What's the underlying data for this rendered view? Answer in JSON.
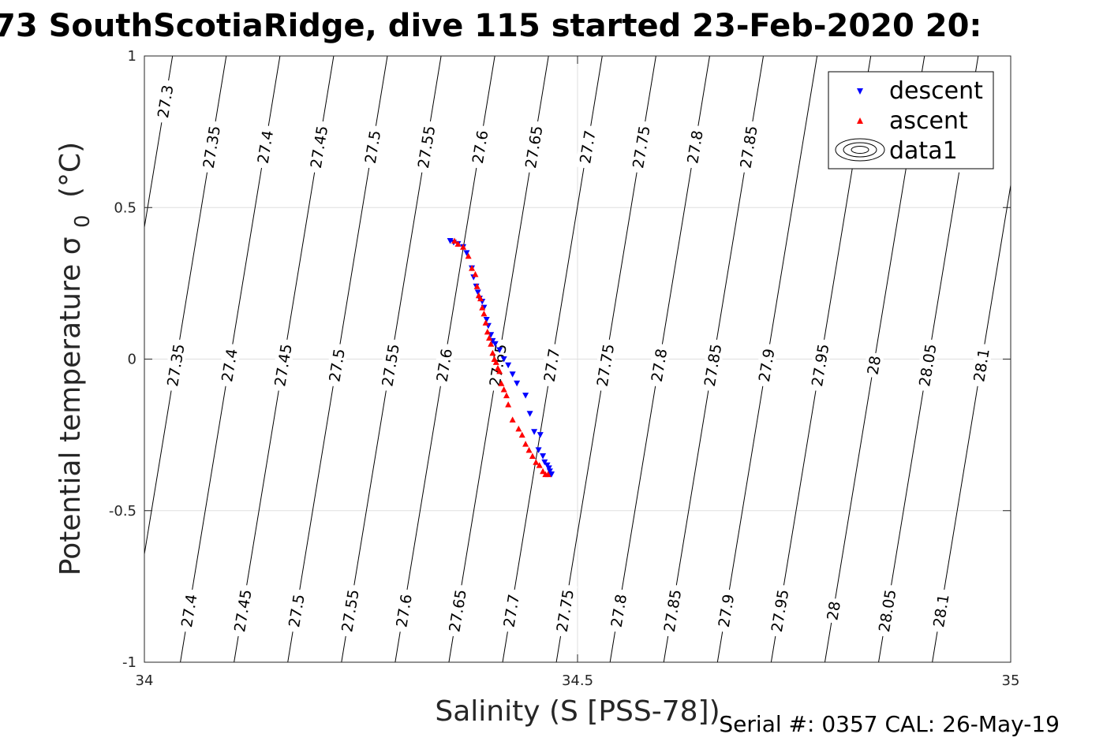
{
  "chart_data": {
    "type": "scatter",
    "title": "73 SouthScotiaRidge, dive 115 started 23-Feb-2020 20:",
    "xlabel": "Salinity (S [PSS-78])",
    "ylabel": "Potential temperature σ 0 (°C)",
    "ylabel_main": "Potential temperature σ",
    "ylabel_sub": "0",
    "ylabel_unit": "(°C)",
    "xlim": [
      34,
      35
    ],
    "ylim": [
      -1,
      1
    ],
    "x_ticks": [
      "34",
      "34.5",
      "35"
    ],
    "y_ticks": [
      "1",
      "0.5",
      "0",
      "-0.5",
      "-1"
    ],
    "grid": true,
    "legend": {
      "position": "top-right",
      "entries": [
        "descent",
        "ascent",
        "data1"
      ]
    },
    "footer": "Serial #: 0357  CAL: 26-May-19",
    "colors": {
      "descent": "#0000ff",
      "ascent": "#ff0000",
      "contour": "#000000",
      "grid": "#dfdfdf"
    },
    "contours": [
      {
        "level": "27.3",
        "labels_at_y": [
          0.85
        ]
      },
      {
        "level": "27.35",
        "labels_at_y": [
          0.7,
          -0.02,
          -0.83
        ]
      },
      {
        "level": "27.4",
        "labels_at_y": [
          0.7,
          -0.02,
          -0.83
        ]
      },
      {
        "level": "27.45",
        "labels_at_y": [
          0.7,
          -0.02,
          -0.83
        ]
      },
      {
        "level": "27.5",
        "labels_at_y": [
          0.7,
          -0.02,
          -0.83
        ]
      },
      {
        "level": "27.55",
        "labels_at_y": [
          0.7,
          -0.02,
          -0.83
        ]
      },
      {
        "level": "27.6",
        "labels_at_y": [
          0.7,
          -0.02,
          -0.83
        ]
      },
      {
        "level": "27.65",
        "labels_at_y": [
          0.7,
          -0.02,
          -0.83
        ]
      },
      {
        "level": "27.7",
        "labels_at_y": [
          0.7,
          -0.02,
          -0.83
        ]
      },
      {
        "level": "27.75",
        "labels_at_y": [
          0.7,
          -0.02,
          -0.83
        ]
      },
      {
        "level": "27.8",
        "labels_at_y": [
          0.7,
          -0.02,
          -0.83
        ]
      },
      {
        "level": "27.85",
        "labels_at_y": [
          0.7,
          -0.02,
          -0.83
        ]
      },
      {
        "level": "27.9",
        "labels_at_y": [
          -0.02,
          -0.83
        ]
      },
      {
        "level": "27.95",
        "labels_at_y": [
          -0.02,
          -0.83
        ]
      },
      {
        "level": "28",
        "labels_at_y": [
          -0.02,
          -0.83
        ]
      },
      {
        "level": "28.05",
        "labels_at_y": [
          0.7,
          -0.02,
          -0.83
        ]
      },
      {
        "level": "28.1",
        "labels_at_y": [
          -0.02,
          -0.83
        ]
      }
    ],
    "contour_anchor_salinity_at_0C": {
      "27.3": 33.975,
      "27.35": 34.037,
      "27.4": 34.099,
      "27.45": 34.161,
      "27.5": 34.223,
      "27.55": 34.285,
      "27.6": 34.347,
      "27.65": 34.409,
      "27.7": 34.471,
      "27.75": 34.533,
      "27.8": 34.595,
      "27.85": 34.657,
      "27.9": 34.719,
      "27.95": 34.781,
      "28": 34.843,
      "28.05": 34.905,
      "28.1": 34.967
    },
    "contour_slope_salinity_per_degC": 0.0575,
    "series": [
      {
        "name": "descent",
        "marker": "triangle-down",
        "x": [
          34.353,
          34.357,
          34.362,
          34.368,
          34.372,
          34.378,
          34.38,
          34.383,
          34.385,
          34.387,
          34.39,
          34.392,
          34.395,
          34.397,
          34.4,
          34.402,
          34.405,
          34.41,
          34.415,
          34.42,
          34.425,
          34.43,
          34.44,
          34.445,
          34.45,
          34.455,
          34.457,
          34.46,
          34.462,
          34.465,
          34.467,
          34.468,
          34.469,
          34.47
        ],
        "y": [
          0.39,
          0.385,
          0.38,
          0.37,
          0.35,
          0.3,
          0.27,
          0.24,
          0.22,
          0.2,
          0.19,
          0.17,
          0.13,
          0.11,
          0.08,
          0.06,
          0.05,
          0.03,
          0.0,
          -0.02,
          -0.05,
          -0.08,
          -0.12,
          -0.18,
          -0.24,
          -0.3,
          -0.25,
          -0.32,
          -0.34,
          -0.35,
          -0.36,
          -0.37,
          -0.38,
          -0.38
        ]
      },
      {
        "name": "ascent",
        "marker": "triangle-up",
        "x": [
          34.358,
          34.362,
          34.368,
          34.374,
          34.378,
          34.382,
          34.384,
          34.386,
          34.388,
          34.39,
          34.392,
          34.394,
          34.396,
          34.398,
          34.4,
          34.402,
          34.404,
          34.406,
          34.408,
          34.41,
          34.412,
          34.415,
          34.418,
          34.42,
          34.425,
          34.432,
          34.436,
          34.44,
          34.444,
          34.448,
          34.452,
          34.456,
          34.46,
          34.463,
          34.466
        ],
        "y": [
          0.39,
          0.38,
          0.37,
          0.34,
          0.3,
          0.28,
          0.24,
          0.21,
          0.2,
          0.17,
          0.15,
          0.12,
          0.09,
          0.07,
          0.05,
          0.02,
          0.0,
          -0.01,
          -0.03,
          -0.04,
          -0.08,
          -0.1,
          -0.12,
          -0.15,
          -0.2,
          -0.23,
          -0.25,
          -0.28,
          -0.3,
          -0.32,
          -0.34,
          -0.35,
          -0.37,
          -0.38,
          -0.38
        ]
      }
    ]
  }
}
